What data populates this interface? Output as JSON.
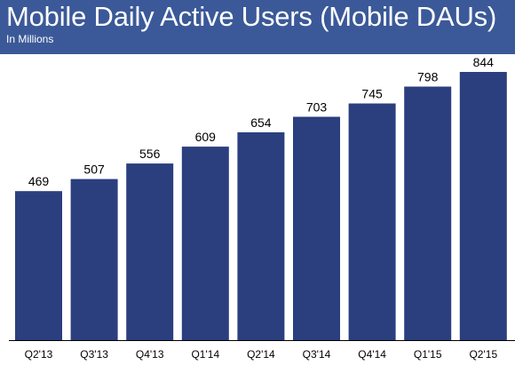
{
  "header": {
    "title": "Mobile Daily Active Users (Mobile DAUs)",
    "subtitle": "In Millions"
  },
  "colors": {
    "header_background": "#3b5998",
    "bar_fill": "#2b3f7f",
    "axis": "#000000"
  },
  "chart_data": {
    "type": "bar",
    "title": "Mobile Daily Active Users (Mobile DAUs)",
    "subtitle": "In Millions",
    "xlabel": "",
    "ylabel": "",
    "categories": [
      "Q2'13",
      "Q3'13",
      "Q4'13",
      "Q1'14",
      "Q2'14",
      "Q3'14",
      "Q4'14",
      "Q1'15",
      "Q2'15"
    ],
    "values": [
      469,
      507,
      556,
      609,
      654,
      703,
      745,
      798,
      844
    ],
    "ylim": [
      0,
      900
    ],
    "grid": false,
    "legend": "none",
    "data_labels": true
  }
}
